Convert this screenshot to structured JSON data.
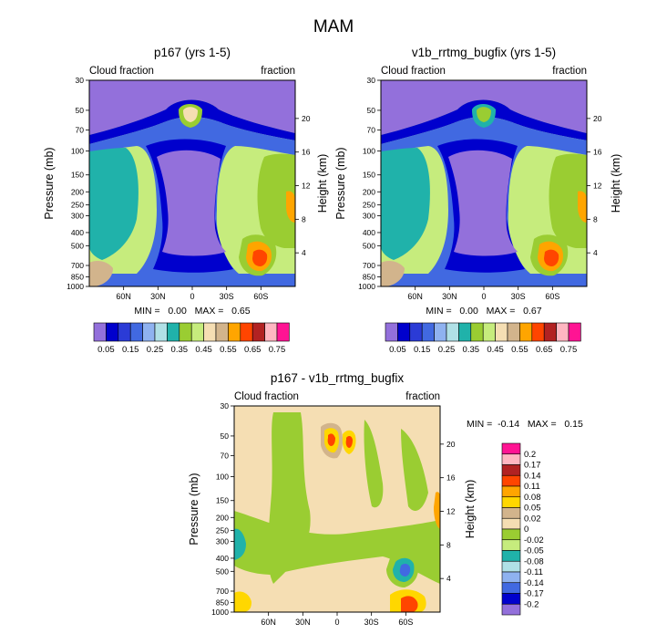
{
  "figure_title": "MAM",
  "chart_data": [
    {
      "type": "heatmap",
      "panel": "p167",
      "title": "p167 (yrs 1-5)",
      "left_string": "Cloud fraction",
      "right_string": "fraction",
      "ylabel": "Pressure (mb)",
      "ylabel_right": "Height (km)",
      "xlabel": "",
      "pressure_ticks": [
        "30",
        "50",
        "70",
        "100",
        "150",
        "200",
        "250",
        "300",
        "400",
        "500",
        "700",
        "850",
        "1000"
      ],
      "pressure_values": [
        30,
        50,
        70,
        100,
        150,
        200,
        250,
        300,
        400,
        500,
        700,
        850,
        1000
      ],
      "height_ticks": [
        "20",
        "16",
        "12",
        "8",
        "4"
      ],
      "height_values": [
        20,
        16,
        12,
        8,
        4
      ],
      "x_ticks": [
        "60N",
        "30N",
        "0",
        "30S",
        "60S"
      ],
      "x_values": [
        60,
        30,
        0,
        -30,
        -60
      ],
      "xlim": [
        90,
        -90
      ],
      "ylim": [
        1000,
        30
      ],
      "stats_text": "MIN =   0.00   MAX =   0.65",
      "min": 0.0,
      "max": 0.65,
      "levels": [
        0.05,
        0.1,
        0.15,
        0.2,
        0.25,
        0.3,
        0.35,
        0.4,
        0.45,
        0.5,
        0.55,
        0.6,
        0.65,
        0.7,
        0.75
      ],
      "colorbar_labels": [
        "0.05",
        "0.15",
        "0.25",
        "0.35",
        "0.45",
        "0.55",
        "0.65",
        "0.75"
      ],
      "colors": [
        "#9370db",
        "#0000cd",
        "#2b3bd6",
        "#4169e1",
        "#8fb2f0",
        "#b0e0e6",
        "#20b2aa",
        "#9acd32",
        "#c6ec7d",
        "#f5deb3",
        "#d2b48c",
        "#ffa500",
        "#ff4500",
        "#b22222",
        "#ffb6c1",
        "#ff1493"
      ]
    },
    {
      "type": "heatmap",
      "panel": "v1b_rrtmg_bugfix",
      "title": "v1b_rrtmg_bugfix (yrs 1-5)",
      "left_string": "Cloud fraction",
      "right_string": "fraction",
      "ylabel": "Pressure (mb)",
      "ylabel_right": "Height (km)",
      "xlabel": "",
      "pressure_ticks": [
        "30",
        "50",
        "70",
        "100",
        "150",
        "200",
        "250",
        "300",
        "400",
        "500",
        "700",
        "850",
        "1000"
      ],
      "pressure_values": [
        30,
        50,
        70,
        100,
        150,
        200,
        250,
        300,
        400,
        500,
        700,
        850,
        1000
      ],
      "height_ticks": [
        "20",
        "16",
        "12",
        "8",
        "4"
      ],
      "height_values": [
        20,
        16,
        12,
        8,
        4
      ],
      "x_ticks": [
        "60N",
        "30N",
        "0",
        "30S",
        "60S"
      ],
      "x_values": [
        60,
        30,
        0,
        -30,
        -60
      ],
      "xlim": [
        90,
        -90
      ],
      "ylim": [
        1000,
        30
      ],
      "stats_text": "MIN =   0.00   MAX =   0.67",
      "min": 0.0,
      "max": 0.67,
      "levels": [
        0.05,
        0.1,
        0.15,
        0.2,
        0.25,
        0.3,
        0.35,
        0.4,
        0.45,
        0.5,
        0.55,
        0.6,
        0.65,
        0.7,
        0.75
      ],
      "colorbar_labels": [
        "0.05",
        "0.15",
        "0.25",
        "0.35",
        "0.45",
        "0.55",
        "0.65",
        "0.75"
      ],
      "colors": [
        "#9370db",
        "#0000cd",
        "#2b3bd6",
        "#4169e1",
        "#8fb2f0",
        "#b0e0e6",
        "#20b2aa",
        "#9acd32",
        "#c6ec7d",
        "#f5deb3",
        "#d2b48c",
        "#ffa500",
        "#ff4500",
        "#b22222",
        "#ffb6c1",
        "#ff1493"
      ]
    },
    {
      "type": "heatmap",
      "panel": "difference",
      "title": "p167 - v1b_rrtmg_bugfix",
      "left_string": "Cloud fraction",
      "right_string": "fraction",
      "ylabel": "Pressure (mb)",
      "ylabel_right": "Height (km)",
      "xlabel": "",
      "pressure_ticks": [
        "30",
        "50",
        "70",
        "100",
        "150",
        "200",
        "250",
        "300",
        "400",
        "500",
        "700",
        "850",
        "1000"
      ],
      "pressure_values": [
        30,
        50,
        70,
        100,
        150,
        200,
        250,
        300,
        400,
        500,
        700,
        850,
        1000
      ],
      "height_ticks": [
        "20",
        "16",
        "12",
        "8",
        "4"
      ],
      "height_values": [
        20,
        16,
        12,
        8,
        4
      ],
      "x_ticks": [
        "60N",
        "30N",
        "0",
        "30S",
        "60S"
      ],
      "x_values": [
        60,
        30,
        0,
        -30,
        -60
      ],
      "xlim": [
        90,
        -90
      ],
      "ylim": [
        1000,
        30
      ],
      "stats_text": "MIN =  -0.14   MAX =   0.15",
      "min": -0.14,
      "max": 0.15,
      "levels": [
        -0.2,
        -0.17,
        -0.14,
        -0.11,
        -0.08,
        -0.05,
        -0.02,
        0,
        0.02,
        0.05,
        0.08,
        0.11,
        0.14,
        0.17,
        0.2
      ],
      "colorbar_labels": [
        "0.2",
        "0.17",
        "0.14",
        "0.11",
        "0.08",
        "0.05",
        "0.02",
        "0",
        "-0.02",
        "-0.05",
        "-0.08",
        "-0.11",
        "-0.14",
        "-0.17",
        "-0.2"
      ],
      "colors": [
        "#9370db",
        "#0000cd",
        "#4169e1",
        "#8fb2f0",
        "#b0e0e6",
        "#20b2aa",
        "#c6ec7d",
        "#9acd32",
        "#f5deb3",
        "#d2b48c",
        "#ffd700",
        "#ffa500",
        "#ff4500",
        "#b22222",
        "#ffb6c1",
        "#ff1493"
      ]
    }
  ]
}
